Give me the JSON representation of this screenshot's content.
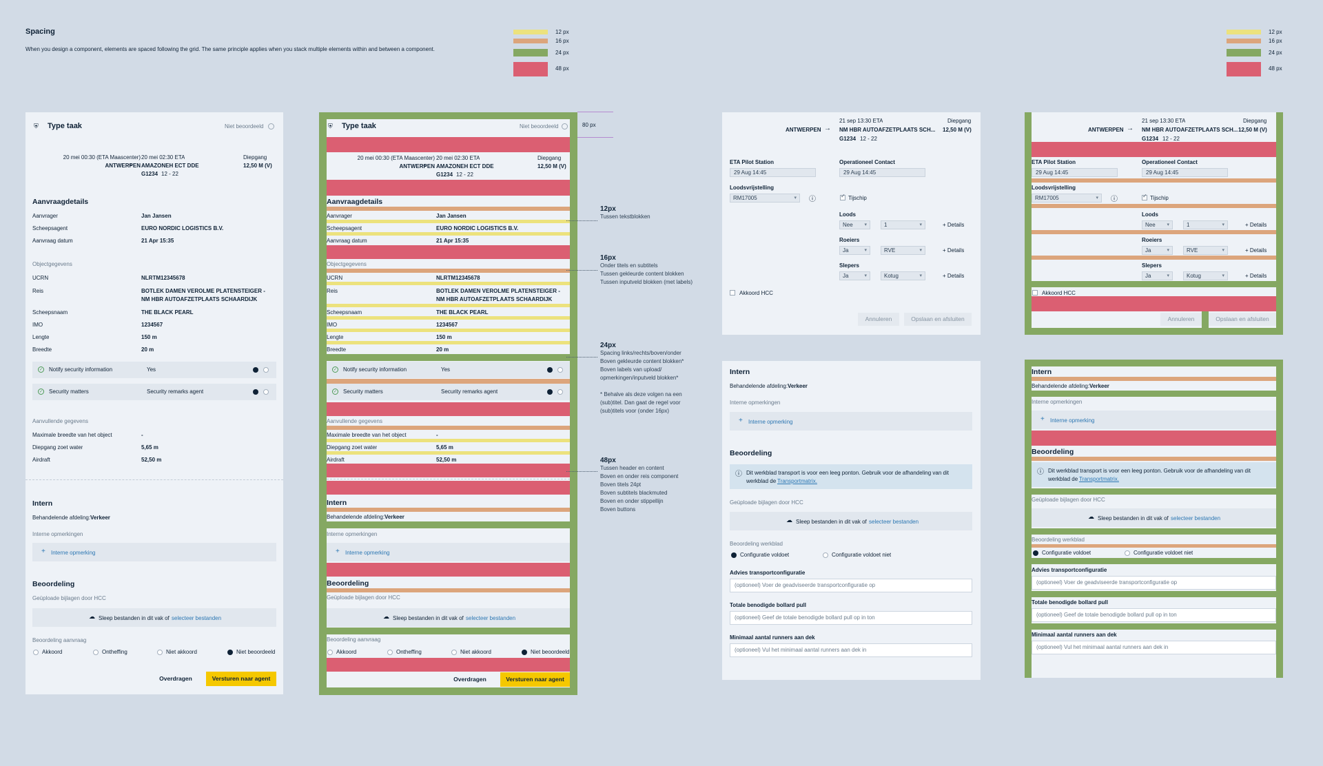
{
  "header": {
    "title": "Spacing",
    "description": "When you design a component, elements are spaced following the grid. The same principle applies when you stack multiple elements within and between a component."
  },
  "legend": {
    "items": [
      {
        "label": "12 px",
        "color": "#ece27d"
      },
      {
        "label": "16 px",
        "color": "#dca57c"
      },
      {
        "label": "24 px",
        "color": "#85a862"
      },
      {
        "label": "48 px",
        "color": "#db5f72"
      }
    ]
  },
  "task": {
    "type": "Type taak",
    "status": "Niet beoordeeld",
    "eta1": "20 mei 00:30 (ETA Maascenter)",
    "from": "ANTWERPEN",
    "eta2": "20 mei 02:30 ETA",
    "to": "AMAZONEH ECT DDE",
    "code": "G1234",
    "code_range": "12 - 22",
    "draught_label": "Diepgang",
    "draught": "12,50 M (V)",
    "request": {
      "title": "Aanvraagdetails",
      "rows": [
        {
          "k": "Aanvrager",
          "v": "Jan Jansen"
        },
        {
          "k": "Scheepsagent",
          "v": "EURO NORDIC LOGISTICS B.V."
        },
        {
          "k": "Aanvraag datum",
          "v": "21 Apr 15:35"
        }
      ]
    },
    "object": {
      "title": "Objectgegevens",
      "ucrn_k": "UCRN",
      "ucrn": "NLRTM12345678",
      "reis_k": "Reis",
      "reis1": "BOTLEK DAMEN VEROLME PLATENSTEIGER -",
      "reis2": "NM HBR AUTOAFZETPLAATS SCHAARDIJK",
      "rows": [
        {
          "k": "Scheepsnaam",
          "v": "THE BLACK PEARL"
        },
        {
          "k": "IMO",
          "v": "1234567"
        },
        {
          "k": "Lengte",
          "v": "150 m"
        },
        {
          "k": "Breedte",
          "v": "20 m"
        }
      ]
    },
    "toggles": [
      {
        "label": "Notify security information",
        "value": "Yes"
      },
      {
        "label": "Security matters",
        "value": "Security remarks agent"
      }
    ],
    "extra": {
      "title": "Aanvullende gegevens",
      "rows": [
        {
          "k": "Maximale breedte van het object",
          "v": "-"
        },
        {
          "k": "Diepgang zoet water",
          "v": "5,65 m"
        },
        {
          "k": "Airdraft",
          "v": "52,50 m"
        }
      ]
    },
    "intern": {
      "title": "Intern",
      "dept_label": "Behandelende afdeling:",
      "dept": "Verkeer",
      "remarks_label": "Interne opmerkingen",
      "add_remark": "Interne opmerking"
    },
    "review": {
      "title": "Beoordeling",
      "uploads_label": "Geüploade bijlagen door HCC",
      "drop_text": "Sleep bestanden in dit vak of",
      "drop_link": "selecteer bestanden",
      "request_label": "Beoordeling aanvraag",
      "options": [
        "Akkoord",
        "Ontheffing",
        "Niet akkoord",
        "Niet beoordeeld"
      ]
    },
    "buttons": {
      "transfer": "Overdragen",
      "send": "Versturen naar agent"
    }
  },
  "annotations": {
    "gap80": "80 px",
    "a12": {
      "title": "12px",
      "lines": [
        "Tussen tekstblokken"
      ]
    },
    "a16": {
      "title": "16px",
      "lines": [
        "Onder titels en subtitels",
        "Tussen gekleurde content blokken",
        "Tussen inputveld blokken (met labels)"
      ]
    },
    "a24": {
      "title": "24px",
      "lines": [
        "Spacing links/rechts/boven/onder",
        "Boven gekleurde content blokken*",
        "Boven labels van upload/",
        "opmerkingen/inputveld blokken*",
        "",
        "* Behalve als deze volgen na een",
        "(sub)titel. Dan gaat de regel voor",
        "(sub)titels voor (onder 16px)"
      ]
    },
    "a48": {
      "title": "48px",
      "lines": [
        "Tussen header en content",
        "Boven en onder reis component",
        "Boven titels 24pt",
        "Boven subtitels blackmuted",
        "Boven en onder stippellijn",
        "Boven buttons"
      ]
    }
  },
  "pilot": {
    "eta": "21 sep 13:30 ETA",
    "from": "ANTWERPEN",
    "to": "NM HBR AUTOAFZETPLAATS SCH...",
    "code": "G1234",
    "code_range": "12 - 22",
    "draught_label": "Diepgang",
    "draught": "12,50 M (V)",
    "eta_station_label": "ETA Pilot Station",
    "eta_station": "29 Aug 14:45",
    "op_contact_label": "Operationeel Contact",
    "op_contact": "29 Aug 14:45",
    "exemption_label": "Loodsvrijstelling",
    "exemption": "RM17005",
    "tug_check": "Tijschip",
    "rows": [
      {
        "label": "Loods",
        "a": "Nee",
        "b": "1"
      },
      {
        "label": "Roeiers",
        "a": "Ja",
        "b": "RVE"
      },
      {
        "label": "Slepers",
        "a": "Ja",
        "b": "Kotug"
      }
    ],
    "details": "Details",
    "akkoord": "Akkoord HCC",
    "cancel": "Annuleren",
    "save": "Opslaan en afsluiten"
  },
  "assess": {
    "intern": "Intern",
    "dept_label": "Behandelende afdeling:",
    "dept": "Verkeer",
    "remarks_label": "Interne opmerkingen",
    "add_remark": "Interne opmerking",
    "title": "Beoordeling",
    "info1": "Dit werkblad transport is voor een leeg ponton. Gebruik voor de afhandeling van dit",
    "info2": "werkblad de",
    "info_link": "Transportmatrix.",
    "uploads_label": "Geüploade bijlagen door HCC",
    "drop_text": "Sleep bestanden in dit vak of",
    "drop_link": "selecteer bestanden",
    "sheet_label": "Beoordeling werkblad",
    "opt1": "Configuratie voldoet",
    "opt2": "Configuratie voldoet niet",
    "f1_label": "Advies transportconfiguratie",
    "f1_ph": "(optioneel) Voer de geadviseerde transportconfiguratie op",
    "f2_label": "Totale benodigde bollard pull",
    "f2_ph": "(optioneel) Geef de totale benodigde bollard pull op in ton",
    "f3_label": "Minimaal aantal runners aan dek",
    "f3_ph": "(optioneel) Vul het minimaal aantal runners aan dek in"
  }
}
